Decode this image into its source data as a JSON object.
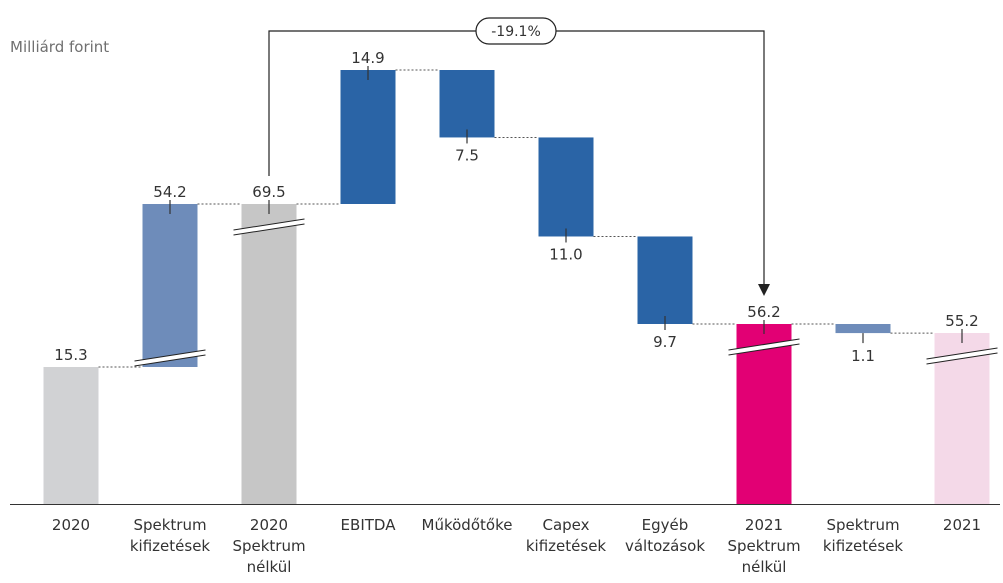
{
  "unit_label": "Milliárd forint",
  "chart_data": {
    "type": "waterfall",
    "title": "",
    "ylabel": "",
    "ylim": [
      0,
      80
    ],
    "bars": [
      {
        "category": [
          "2020"
        ],
        "kind": "total",
        "value": 15.3,
        "label": "15.3",
        "color": "#d1d2d4",
        "broken": false
      },
      {
        "category": [
          "Spektrum",
          "kifizetések"
        ],
        "kind": "delta",
        "value": 54.2,
        "label": "54.2",
        "color": "#6e8cba",
        "broken": true
      },
      {
        "category": [
          "2020",
          "Spektrum",
          "nélkül"
        ],
        "kind": "total",
        "value": 69.5,
        "label": "69.5",
        "color": "#c6c6c6",
        "broken": true
      },
      {
        "category": [
          "EBITDA"
        ],
        "kind": "delta",
        "value": 14.9,
        "label": "14.9",
        "color": "#2a64a6",
        "broken": false
      },
      {
        "category": [
          "Működőtőke"
        ],
        "kind": "delta",
        "value": -7.5,
        "label": "7.5",
        "color": "#2a64a6",
        "broken": false
      },
      {
        "category": [
          "Capex",
          "kifizetések"
        ],
        "kind": "delta",
        "value": -11.0,
        "label": "11.0",
        "color": "#2a64a6",
        "broken": false
      },
      {
        "category": [
          "Egyéb",
          "változások"
        ],
        "kind": "delta",
        "value": -9.7,
        "label": "9.7",
        "color": "#2a64a6",
        "broken": false
      },
      {
        "category": [
          "2021",
          "Spektrum",
          "nélkül"
        ],
        "kind": "total",
        "value": 56.2,
        "label": "56.2",
        "color": "#e20074",
        "broken": true
      },
      {
        "category": [
          "Spektrum",
          "kifizetések"
        ],
        "kind": "delta",
        "value": -1.1,
        "label": "1.1",
        "color": "#6e8cba",
        "broken": false
      },
      {
        "category": [
          "2021"
        ],
        "kind": "total",
        "value": 55.2,
        "label": "55.2",
        "color": "#f4d9e8",
        "broken": true
      }
    ],
    "bridge": {
      "from_index": 2,
      "to_index": 7,
      "label": "-19.1%"
    }
  }
}
